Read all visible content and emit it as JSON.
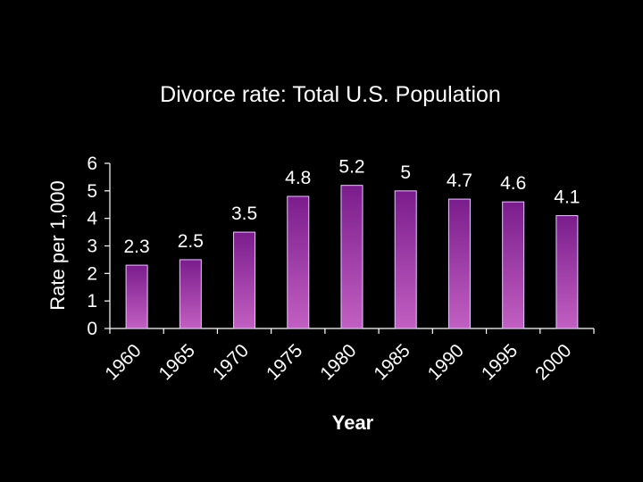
{
  "chart_data": {
    "type": "bar",
    "title": "Divorce rate: Total U.S. Population",
    "xlabel": "Year",
    "ylabel": "Rate per 1,000",
    "categories": [
      "1960",
      "1965",
      "1970",
      "1975",
      "1980",
      "1985",
      "1990",
      "1995",
      "2000"
    ],
    "values": [
      2.3,
      2.5,
      3.5,
      4.8,
      5.2,
      5,
      4.7,
      4.6,
      4.1
    ],
    "data_labels": [
      "2.3",
      "2.5",
      "3.5",
      "4.8",
      "5.2",
      "5",
      "4.7",
      "4.6",
      "4.1"
    ],
    "yticks": [
      "0",
      "1",
      "2",
      "3",
      "4",
      "5",
      "6"
    ],
    "ylim": [
      0,
      6
    ],
    "grid": false,
    "legend": "none",
    "colors": {
      "background": "#000000",
      "bar_dark": "#7a1d8c",
      "bar_light": "#c25fc2",
      "text": "#ffffff"
    }
  }
}
